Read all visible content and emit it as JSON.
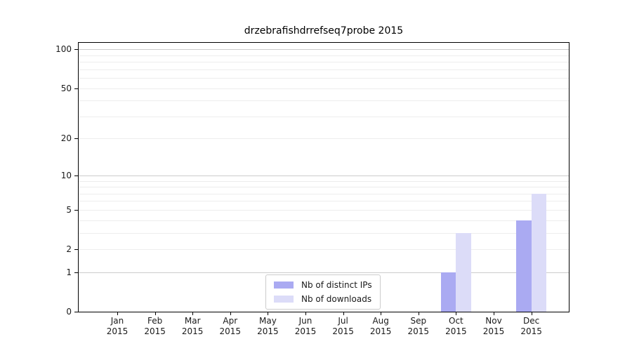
{
  "chart_data": {
    "type": "bar",
    "title": "drzebrafishdrrefseq7probe 2015",
    "categories": [
      "Jan",
      "Feb",
      "Mar",
      "Apr",
      "May",
      "Jun",
      "Jul",
      "Aug",
      "Sep",
      "Oct",
      "Nov",
      "Dec"
    ],
    "category_year": "2015",
    "series": [
      {
        "name": "Nb of distinct IPs",
        "color": "#aaaaf2",
        "values": [
          0,
          0,
          0,
          0,
          0,
          0,
          0,
          0,
          0,
          1,
          0,
          4
        ]
      },
      {
        "name": "Nb of downloads",
        "color": "#dcdcf8",
        "values": [
          0,
          0,
          0,
          0,
          0,
          0,
          0,
          0,
          0,
          3,
          0,
          7
        ]
      }
    ],
    "xlabel": "",
    "ylabel": "",
    "yscale": "log1p",
    "ylim": [
      0,
      112
    ],
    "yticks": [
      0,
      1,
      2,
      5,
      10,
      20,
      50,
      100
    ],
    "major_gridlines": [
      1,
      10,
      100
    ],
    "minor_gridlines": [
      2,
      3,
      4,
      5,
      6,
      7,
      8,
      9,
      20,
      30,
      40,
      50,
      60,
      70,
      80,
      90
    ],
    "grid": "horizontal",
    "legend_position": "lower-center-inside",
    "colors": {
      "axis": "#000000",
      "text": "#1a1a1a",
      "major_grid": "#cccccc",
      "minor_grid": "#ededed",
      "legend_border": "#cccccc",
      "background": "#ffffff"
    }
  }
}
